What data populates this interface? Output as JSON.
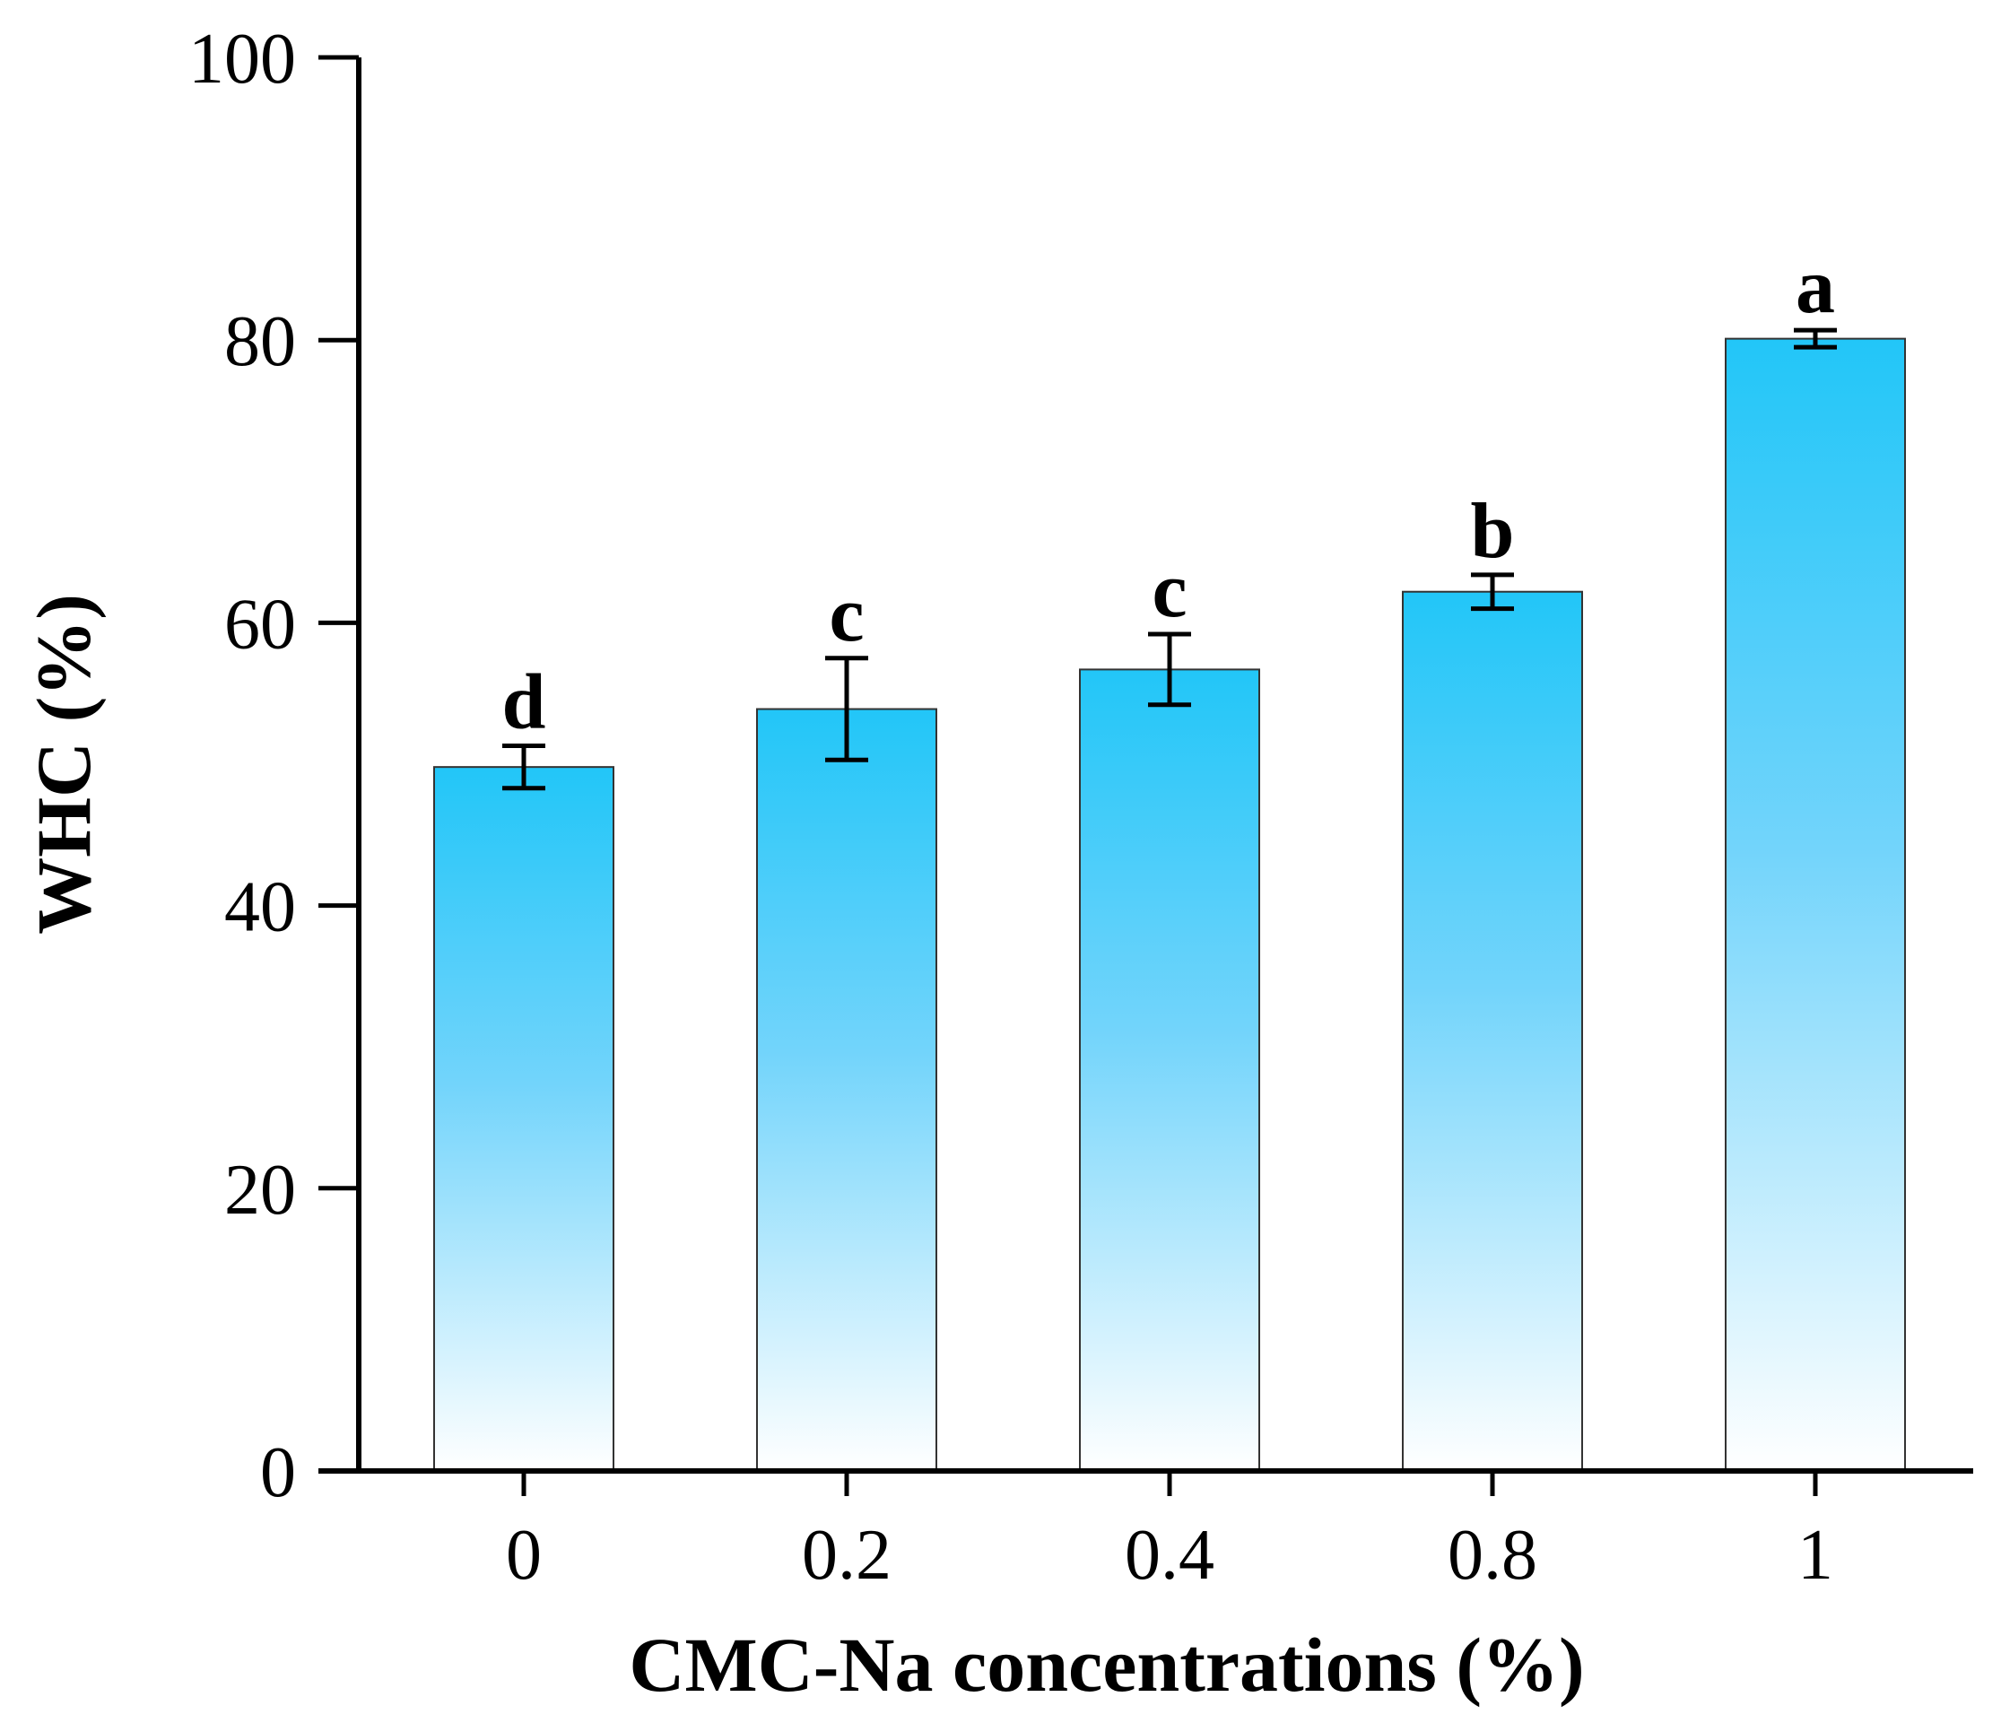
{
  "chart_data": {
    "type": "bar",
    "categories": [
      "0",
      "0.2",
      "0.4",
      "0.8",
      "1"
    ],
    "values": [
      49.8,
      53.9,
      56.7,
      62.2,
      80.1
    ],
    "errors": [
      1.5,
      3.6,
      2.5,
      1.2,
      0.6
    ],
    "significance": [
      "d",
      "c",
      "c",
      "b",
      "a"
    ],
    "xlabel": "CMC-Na concentrations (%)",
    "ylabel": "WHC (%)",
    "ylim": [
      0,
      100
    ],
    "yticks": [
      "0",
      "20",
      "40",
      "60",
      "80",
      "100"
    ],
    "grid": false,
    "legend": "none",
    "bar_gradient": [
      "#22c6f8",
      "#ffffff"
    ]
  }
}
